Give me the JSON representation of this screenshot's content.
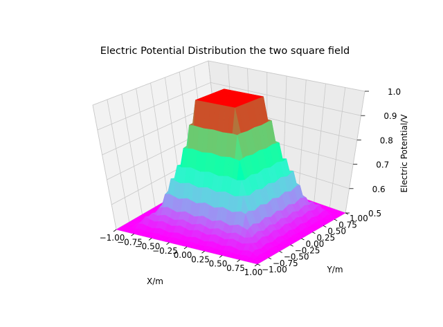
{
  "chart_data": {
    "type": "surface",
    "title": "Electric Potential Distribution the two square field",
    "xlabel": "X/m",
    "ylabel": "Y/m",
    "zlabel": "Electric Potential/V",
    "xlim": [
      -1.0,
      1.0
    ],
    "ylim": [
      -1.0,
      1.0
    ],
    "zlim": [
      0.5,
      1.0
    ],
    "x_ticks": [
      "−1.00",
      "−0.75",
      "−0.50",
      "−0.25",
      "0.00",
      "0.25",
      "0.50",
      "0.75",
      "1.00"
    ],
    "y_ticks": [
      "−1.00",
      "−0.75",
      "−0.50",
      "−0.25",
      "0.00",
      "0.25",
      "0.50",
      "0.75",
      "1.00"
    ],
    "z_ticks": [
      "0.5",
      "0.6",
      "0.7",
      "0.8",
      "0.9",
      "1.0"
    ],
    "colormap": "rainbow",
    "grid": true,
    "surface": {
      "inner_square_half_width": 0.25,
      "inner_potential": 1.0,
      "outer_boundary_potential": 0.5,
      "edge_potential_range": [
        0.5,
        0.53
      ]
    }
  }
}
